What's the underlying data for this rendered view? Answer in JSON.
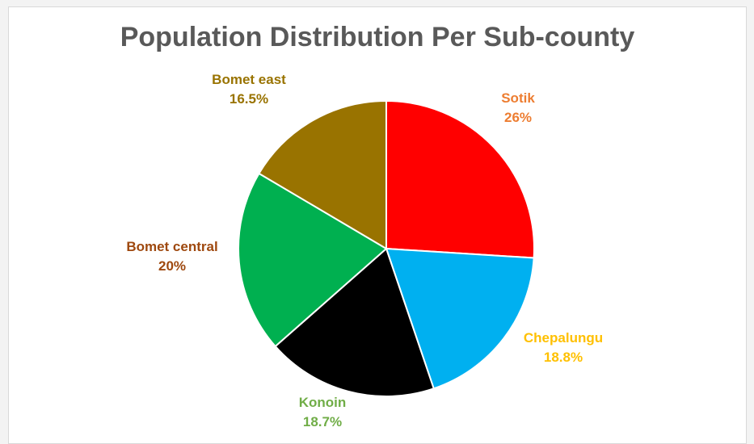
{
  "chart_data": {
    "type": "pie",
    "title": "Population Distribution Per Sub-county",
    "slices": [
      {
        "label": "Sotik",
        "value_label": "26%",
        "value": 26,
        "color": "#ff0000",
        "label_color": "#ed7d31"
      },
      {
        "label": "Chepalungu",
        "value_label": "18.8%",
        "value": 18.8,
        "color": "#00b0f0",
        "label_color": "#ffc000"
      },
      {
        "label": "Konoin",
        "value_label": "18.7%",
        "value": 18.7,
        "color": "#000000",
        "label_color": "#70ad47"
      },
      {
        "label": "Bomet central",
        "value_label": "20%",
        "value": 20,
        "color": "#00b050",
        "label_color": "#9e480e"
      },
      {
        "label": "Bomet east",
        "value_label": "16.5%",
        "value": 16.5,
        "color": "#997300",
        "label_color": "#997300"
      }
    ]
  }
}
